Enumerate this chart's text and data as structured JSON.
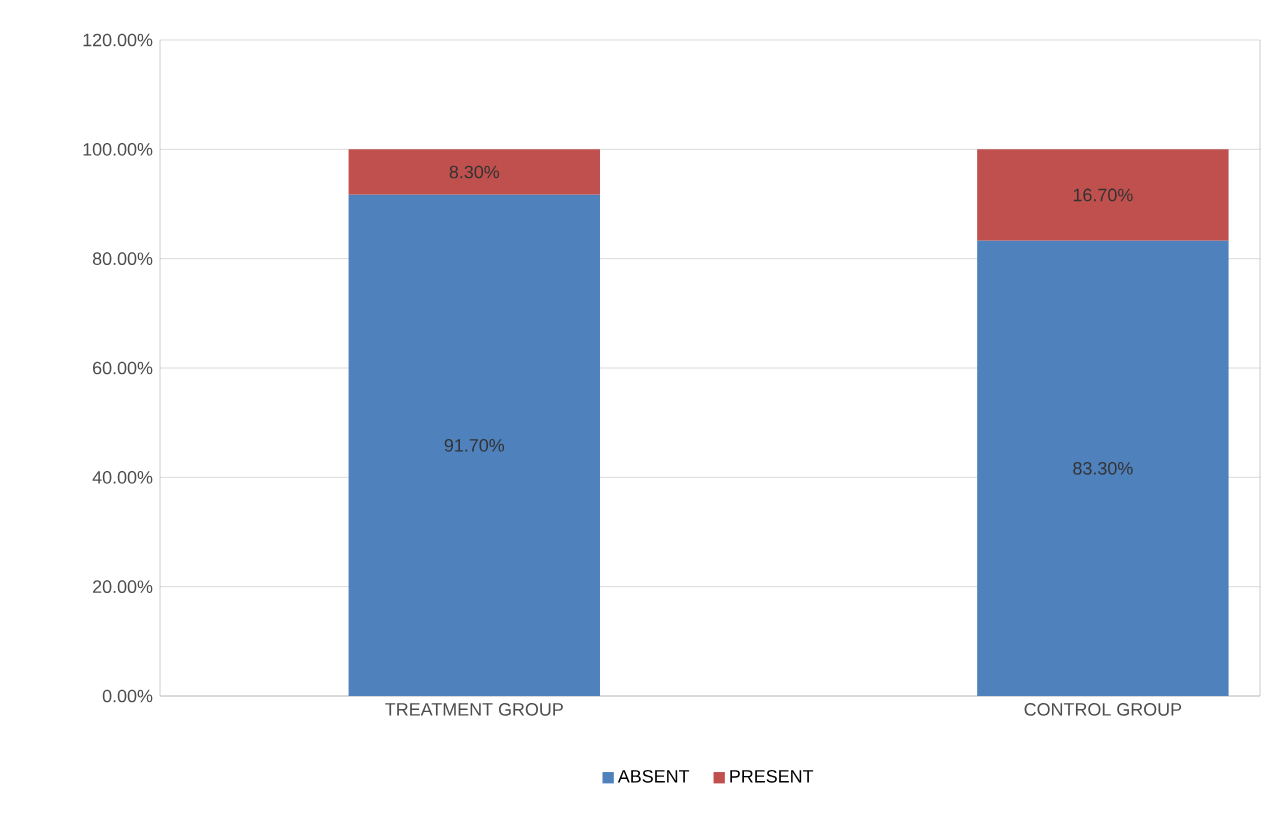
{
  "chart_data": {
    "type": "bar",
    "stacked": true,
    "categories": [
      "TREATMENT GROUP",
      "CONTROL GROUP"
    ],
    "series": [
      {
        "name": "ABSENT",
        "color": "#4f81bd",
        "values": [
          91.7,
          83.3
        ],
        "value_labels": [
          "91.70%",
          "83.30%"
        ]
      },
      {
        "name": "PRESENT",
        "color": "#c0504d",
        "values": [
          8.3,
          16.7
        ],
        "value_labels": [
          "8.30%",
          "16.70%"
        ]
      }
    ],
    "ylim": [
      0,
      120
    ],
    "yticks": [
      {
        "value": 0,
        "label": "0.00%"
      },
      {
        "value": 20,
        "label": "20.00%"
      },
      {
        "value": 40,
        "label": "40.00%"
      },
      {
        "value": 60,
        "label": "60.00%"
      },
      {
        "value": 80,
        "label": "80.00%"
      },
      {
        "value": 100,
        "label": "100.00%"
      },
      {
        "value": 120,
        "label": "120.00%"
      }
    ],
    "grid": "y",
    "legend": "bottom"
  }
}
